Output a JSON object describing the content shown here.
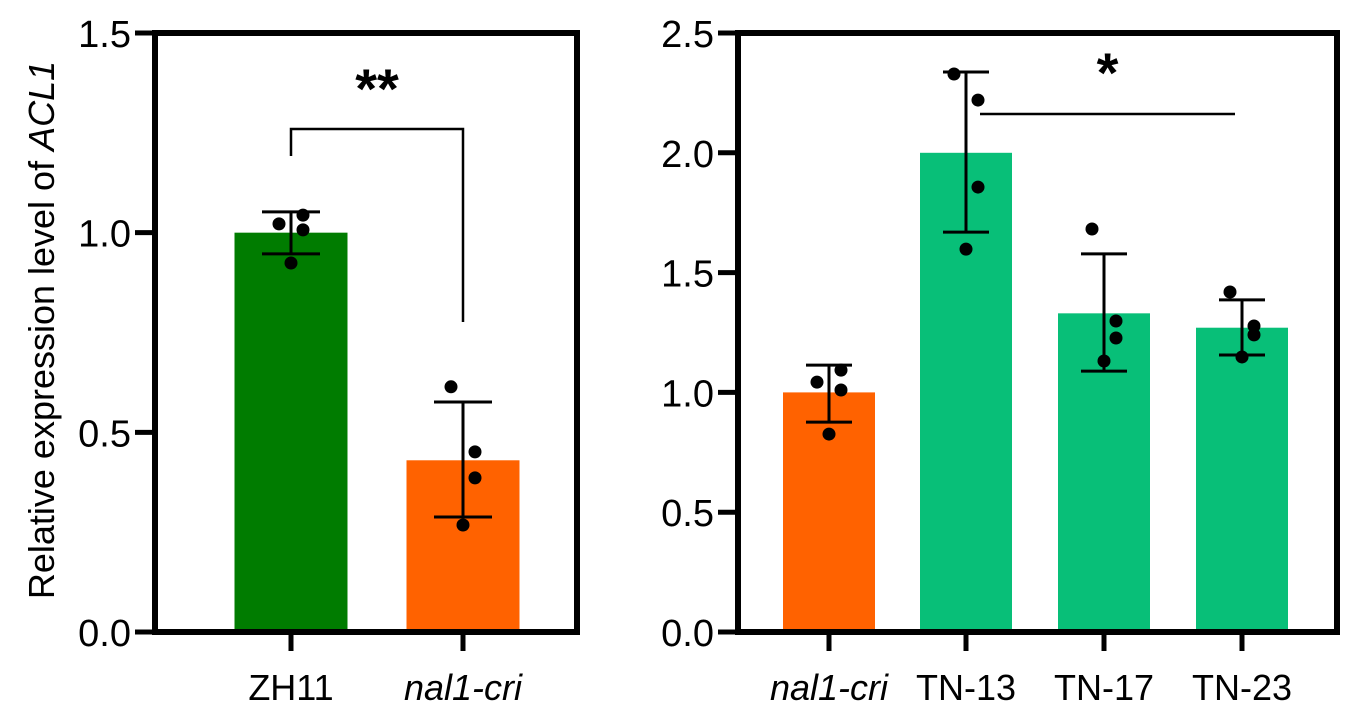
{
  "chart_data": [
    {
      "type": "bar",
      "panel": "left",
      "ylabel_prefix": "Relative expression level of ",
      "ylabel_gene": "ACL1",
      "xlabel": "",
      "ylim": [
        0,
        1.5
      ],
      "yticks": [
        0.0,
        0.5,
        1.0,
        1.5
      ],
      "ytick_labels": [
        "0.0",
        "0.5",
        "1.0",
        "1.5"
      ],
      "grid": false,
      "categories": [
        {
          "label": "ZH11",
          "italic": false
        },
        {
          "label": "nal1-cri",
          "italic": true
        }
      ],
      "values": [
        1.0,
        0.43
      ],
      "error": [
        [
          0.947,
          1.052
        ],
        [
          0.288,
          0.576
        ]
      ],
      "points": [
        [
          1.022,
          1.044,
          1.007,
          0.924
        ],
        [
          0.614,
          0.451,
          0.386,
          0.268
        ]
      ],
      "colors": [
        "#007c00",
        "#ff6200"
      ],
      "significance": [
        {
          "from": 0,
          "to": 1,
          "label": "**"
        }
      ]
    },
    {
      "type": "bar",
      "panel": "right",
      "xlabel": "",
      "ylabel": "",
      "ylim": [
        0,
        2.5
      ],
      "yticks": [
        0.0,
        0.5,
        1.0,
        1.5,
        2.0,
        2.5
      ],
      "ytick_labels": [
        "0.0",
        "0.5",
        "1.0",
        "1.5",
        "2.0",
        "2.5"
      ],
      "grid": false,
      "categories": [
        {
          "label": "nal1-cri",
          "italic": true
        },
        {
          "label": "TN-13",
          "italic": false
        },
        {
          "label": "TN-17",
          "italic": false
        },
        {
          "label": "TN-23",
          "italic": false
        }
      ],
      "values": [
        1.0,
        2.0,
        1.33,
        1.27
      ],
      "error": [
        [
          0.876,
          1.114
        ],
        [
          1.669,
          2.337
        ],
        [
          1.089,
          1.578
        ],
        [
          1.156,
          1.386
        ]
      ],
      "points": [
        [
          1.043,
          1.093,
          1.01,
          0.826
        ],
        [
          2.329,
          2.22,
          1.857,
          1.598
        ],
        [
          1.682,
          1.298,
          1.227,
          1.131
        ],
        [
          1.419,
          1.277,
          1.24,
          1.148
        ]
      ],
      "colors": [
        "#ff6200",
        "#08bf78",
        "#08bf78",
        "#08bf78"
      ],
      "significance": [
        {
          "from": 1,
          "to": 3,
          "label": "*"
        }
      ]
    }
  ]
}
